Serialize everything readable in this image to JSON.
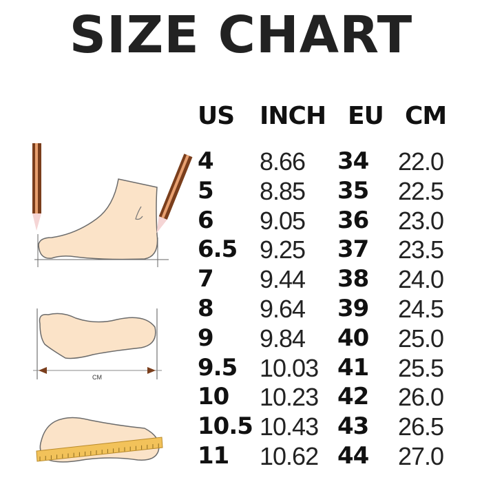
{
  "title": "SIZE CHART",
  "columns": [
    "US",
    "INCH",
    "EU",
    "CM"
  ],
  "rows": [
    [
      "4",
      "8.66",
      "34",
      "22.0"
    ],
    [
      "5",
      "8.85",
      "35",
      "22.5"
    ],
    [
      "6",
      "9.05",
      "36",
      "23.0"
    ],
    [
      "6.5",
      "9.25",
      "37",
      "23.5"
    ],
    [
      "7",
      "9.44",
      "38",
      "24.0"
    ],
    [
      "8",
      "9.64",
      "39",
      "24.5"
    ],
    [
      "9",
      "9.84",
      "40",
      "25.0"
    ],
    [
      "9.5",
      "10.03",
      "41",
      "25.5"
    ],
    [
      "10",
      "10.23",
      "42",
      "26.0"
    ],
    [
      "10.5",
      "10.43",
      "43",
      "26.5"
    ],
    [
      "11",
      "10.62",
      "44",
      "27.0"
    ]
  ],
  "illustration": {
    "measure_label": "CM"
  },
  "colors": {
    "skin": "#fbe3c8",
    "outline": "#6b6b6b",
    "pencil": "#7a3e1c",
    "ruler": "#f2c25a"
  }
}
